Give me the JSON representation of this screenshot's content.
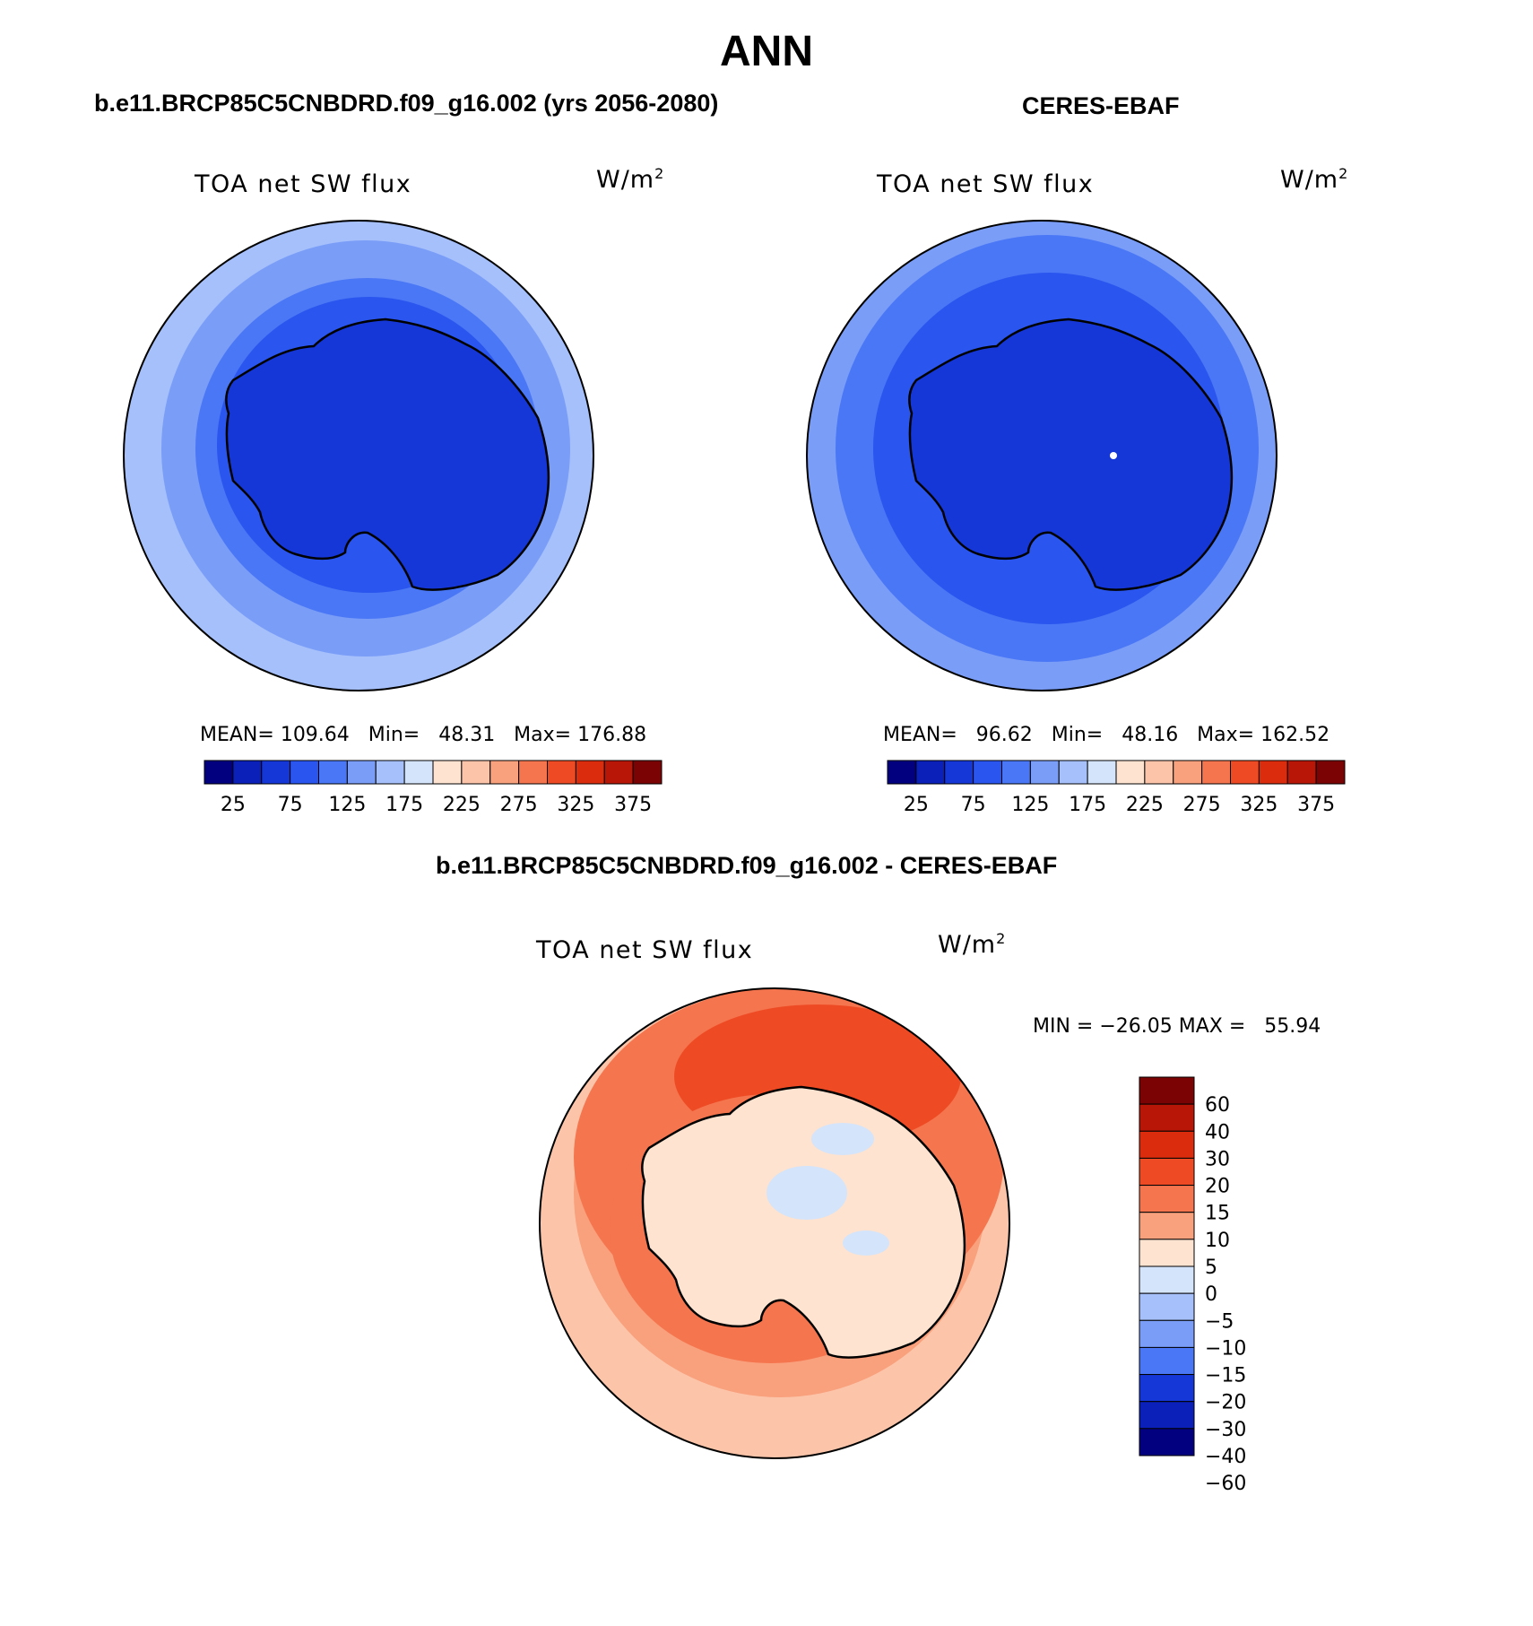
{
  "main_title": "ANN",
  "panels": {
    "model": {
      "case_title": "b.e11.BRCP85C5CNBDRD.f09_g16.002 (yrs 2056-2080)",
      "variable": "TOA net SW flux",
      "units_base": "W/m",
      "units_exp": "2",
      "stats": "MEAN= 109.64   Min=   48.31   Max= 176.88"
    },
    "obs": {
      "case_title": "CERES-EBAF",
      "variable": "TOA net SW flux",
      "units_base": "W/m",
      "units_exp": "2",
      "stats": "MEAN=   96.62   Min=   48.16   Max= 162.52"
    },
    "diff": {
      "case_title": "b.e11.BRCP85C5CNBDRD.f09_g16.002 - CERES-EBAF",
      "variable": "TOA net SW flux",
      "units_base": "W/m",
      "units_exp": "2",
      "stats": "MIN = −26.05 MAX =   55.94"
    }
  },
  "colorbar_abs": {
    "colors": [
      "#02007f",
      "#0a20b8",
      "#1537d8",
      "#2a55ee",
      "#4a77f5",
      "#7a9df8",
      "#a6c0fb",
      "#d4e4fa",
      "#fde3d0",
      "#fcc5aa",
      "#f9a07d",
      "#f5754e",
      "#ee4b25",
      "#db2c0e",
      "#b81707",
      "#7c0303"
    ],
    "labels": [
      "25",
      "75",
      "125",
      "175",
      "225",
      "275",
      "325",
      "375"
    ]
  },
  "colorbar_diff": {
    "colors": [
      "#7c0303",
      "#b81707",
      "#db2c0e",
      "#ee4b25",
      "#f5754e",
      "#f9a07d",
      "#fde3d0",
      "#d4e4fa",
      "#a6c0fb",
      "#7a9df8",
      "#4a77f5",
      "#1537d8",
      "#0a20b8",
      "#02007f"
    ],
    "labels": [
      "60",
      "40",
      "30",
      "20",
      "15",
      "10",
      "5",
      "0",
      "−5",
      "−10",
      "−15",
      "−20",
      "−30",
      "−40",
      "−60"
    ]
  }
}
